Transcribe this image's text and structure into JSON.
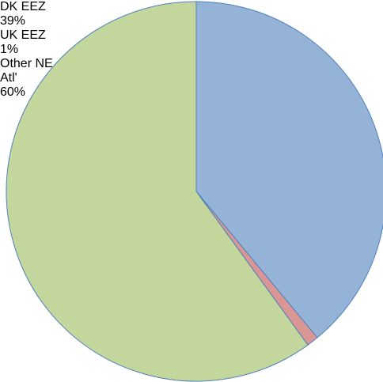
{
  "chart_data": {
    "type": "pie",
    "categories": [
      "DK EEZ",
      "UK EEZ",
      "Other NE Atl'"
    ],
    "values": [
      39,
      1,
      60
    ],
    "value_labels": [
      "39%",
      "1%",
      "60%"
    ],
    "colors": [
      "#95b3d7",
      "#d99694",
      "#c3d69b"
    ]
  }
}
